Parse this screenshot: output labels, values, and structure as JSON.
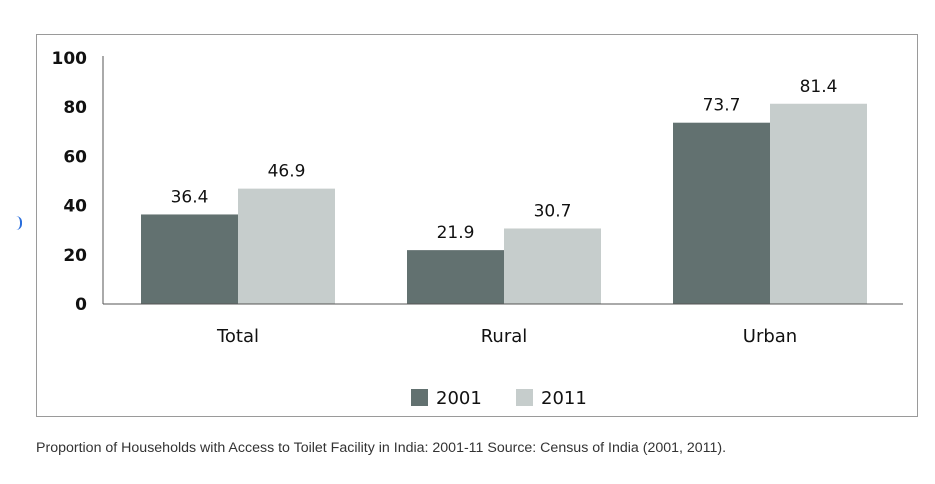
{
  "chart_data": {
    "type": "bar",
    "title": "",
    "xlabel": "",
    "ylabel": "",
    "categories": [
      "Total",
      "Rural",
      "Urban"
    ],
    "series": [
      {
        "name": "2001",
        "values": [
          36.4,
          21.9,
          73.7
        ],
        "color": "#627170"
      },
      {
        "name": "2011",
        "values": [
          46.9,
          30.7,
          81.4
        ],
        "color": "#c6cdcc"
      }
    ],
    "ylim": [
      0,
      100
    ],
    "yticks": [
      0,
      20,
      40,
      60,
      80,
      100
    ],
    "value_labels": [
      [
        "36.4",
        "21.9",
        "73.7"
      ],
      [
        "46.9",
        "30.7",
        "81.4"
      ]
    ],
    "legend_position": "bottom",
    "grid": false
  },
  "caption": "Proportion of Households with Access to Toilet Facility in India: 2001-11 Source: Census of India (2001, 2011)."
}
